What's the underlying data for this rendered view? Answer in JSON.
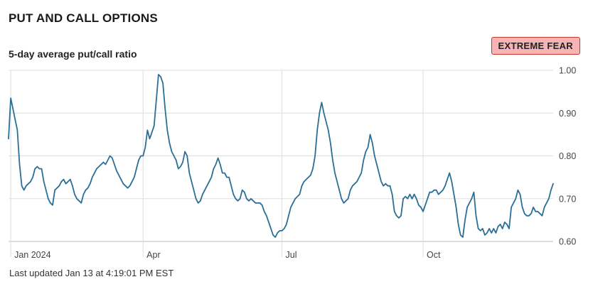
{
  "header": {
    "title": "PUT AND CALL OPTIONS",
    "subtitle": "5-day average put/call ratio",
    "badge": "EXTREME FEAR",
    "updated": "Last updated Jan 13 at 4:19:01 PM EST"
  },
  "colors": {
    "line": "#2a6f97",
    "grid": "#dddddd",
    "badge_bg": "#f8b4b4",
    "badge_border": "#c0392b"
  },
  "chart_data": {
    "type": "line",
    "title": "PUT AND CALL OPTIONS",
    "ylabel": "",
    "xlabel": "",
    "ylim": [
      0.6,
      1.0
    ],
    "y_ticks": [
      "1.00",
      "0.90",
      "0.80",
      "0.70",
      "0.60"
    ],
    "x_ticks": [
      {
        "label": "Jan 2024",
        "x": 1
      },
      {
        "label": "Apr",
        "x": 61
      },
      {
        "label": "Jul",
        "x": 124
      },
      {
        "label": "Oct",
        "x": 188
      }
    ],
    "grid": true,
    "series": [
      {
        "values": [
          0.84,
          0.935,
          0.91,
          0.885,
          0.86,
          0.78,
          0.73,
          0.72,
          0.73,
          0.735,
          0.74,
          0.75,
          0.77,
          0.775,
          0.77,
          0.77,
          0.74,
          0.72,
          0.7,
          0.69,
          0.685,
          0.72,
          0.725,
          0.73,
          0.74,
          0.745,
          0.735,
          0.74,
          0.745,
          0.73,
          0.71,
          0.7,
          0.695,
          0.69,
          0.71,
          0.72,
          0.725,
          0.735,
          0.75,
          0.76,
          0.77,
          0.775,
          0.78,
          0.785,
          0.78,
          0.79,
          0.8,
          0.795,
          0.78,
          0.765,
          0.755,
          0.745,
          0.735,
          0.73,
          0.725,
          0.73,
          0.74,
          0.75,
          0.77,
          0.79,
          0.8,
          0.8,
          0.82,
          0.86,
          0.84,
          0.855,
          0.87,
          0.93,
          0.99,
          0.985,
          0.97,
          0.91,
          0.86,
          0.83,
          0.81,
          0.8,
          0.79,
          0.77,
          0.775,
          0.785,
          0.81,
          0.8,
          0.76,
          0.74,
          0.72,
          0.7,
          0.69,
          0.695,
          0.71,
          0.72,
          0.73,
          0.74,
          0.75,
          0.77,
          0.78,
          0.795,
          0.78,
          0.76,
          0.76,
          0.75,
          0.75,
          0.73,
          0.71,
          0.7,
          0.695,
          0.7,
          0.72,
          0.715,
          0.7,
          0.695,
          0.7,
          0.695,
          0.69,
          0.69,
          0.69,
          0.685,
          0.67,
          0.66,
          0.645,
          0.63,
          0.615,
          0.61,
          0.62,
          0.625,
          0.625,
          0.63,
          0.64,
          0.66,
          0.68,
          0.69,
          0.7,
          0.705,
          0.71,
          0.73,
          0.74,
          0.745,
          0.75,
          0.755,
          0.77,
          0.8,
          0.86,
          0.9,
          0.925,
          0.9,
          0.88,
          0.86,
          0.83,
          0.79,
          0.76,
          0.74,
          0.72,
          0.7,
          0.69,
          0.695,
          0.7,
          0.72,
          0.73,
          0.735,
          0.74,
          0.75,
          0.76,
          0.79,
          0.81,
          0.82,
          0.85,
          0.83,
          0.8,
          0.78,
          0.76,
          0.74,
          0.73,
          0.735,
          0.73,
          0.73,
          0.71,
          0.67,
          0.66,
          0.655,
          0.66,
          0.7,
          0.705,
          0.7,
          0.71,
          0.7,
          0.71,
          0.7,
          0.685,
          0.68,
          0.67,
          0.685,
          0.7,
          0.715,
          0.715,
          0.72,
          0.72,
          0.71,
          0.715,
          0.72,
          0.73,
          0.745,
          0.76,
          0.74,
          0.71,
          0.68,
          0.64,
          0.615,
          0.61,
          0.65,
          0.68,
          0.69,
          0.7,
          0.715,
          0.66,
          0.63,
          0.625,
          0.63,
          0.615,
          0.62,
          0.63,
          0.62,
          0.63,
          0.62,
          0.635,
          0.64,
          0.63,
          0.645,
          0.64,
          0.63,
          0.68,
          0.69,
          0.7,
          0.72,
          0.71,
          0.68,
          0.665,
          0.66,
          0.66,
          0.665,
          0.68,
          0.67,
          0.67,
          0.665,
          0.66,
          0.68,
          0.69,
          0.7,
          0.72,
          0.735
        ]
      }
    ]
  }
}
